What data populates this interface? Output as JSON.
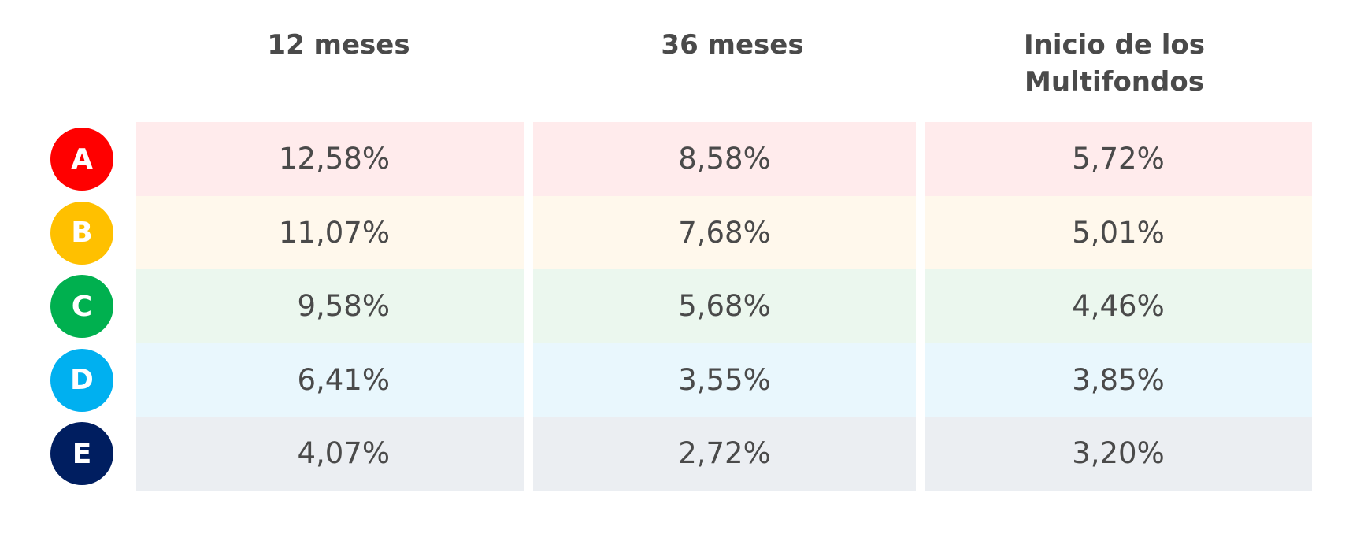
{
  "table": {
    "headers": [
      "12 meses",
      "36 meses",
      "Inicio de los Multifondos"
    ],
    "rows": [
      [
        "A",
        "12,58%",
        "8,58%",
        "5,72%"
      ],
      [
        "B",
        "11,07%",
        "7,68%",
        "5,01%"
      ],
      [
        "C",
        "9,58%",
        "5,68%",
        "4,46%"
      ],
      [
        "D",
        "6,41%",
        "3,55%",
        "3,85%"
      ],
      [
        "E",
        "4,07%",
        "2,72%",
        "3,20%"
      ]
    ]
  }
}
